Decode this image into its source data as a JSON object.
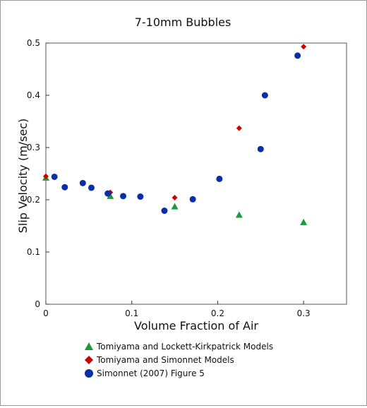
{
  "chart_data": {
    "type": "scatter",
    "title": "7-10mm Bubbles",
    "xlabel": "Volume Fraction of Air",
    "ylabel": "Slip Velocity (m/sec)",
    "xlim": [
      0,
      0.35
    ],
    "ylim": [
      0,
      0.5
    ],
    "xticks": [
      0,
      0.1,
      0.2,
      0.3
    ],
    "xtick_labels": [
      "0",
      "0.1",
      "0.2",
      "0.3"
    ],
    "yticks": [
      0,
      0.1,
      0.2,
      0.3,
      0.4,
      0.5
    ],
    "ytick_labels": [
      "0",
      "0.1",
      "0.2",
      "0.3",
      "0.4",
      "0.5"
    ],
    "grid": false,
    "legend_position": "bottom",
    "series": [
      {
        "name": "Tomiyama and Lockett-Kirkpatrick Models",
        "marker": "triangle",
        "color": "#1a9a3a",
        "points": [
          [
            0.0,
            0.242
          ],
          [
            0.075,
            0.207
          ],
          [
            0.15,
            0.187
          ],
          [
            0.225,
            0.171
          ],
          [
            0.3,
            0.157
          ]
        ]
      },
      {
        "name": "Tomiyama and Simonnet Models",
        "marker": "diamond",
        "color": "#cc0000",
        "points": [
          [
            0.0,
            0.245
          ],
          [
            0.075,
            0.214
          ],
          [
            0.15,
            0.204
          ],
          [
            0.225,
            0.337
          ],
          [
            0.3,
            0.493
          ]
        ]
      },
      {
        "name": "Simonnet (2007) Figure 5",
        "marker": "circle",
        "color": "#0a2ea8",
        "points": [
          [
            0.01,
            0.244
          ],
          [
            0.022,
            0.224
          ],
          [
            0.043,
            0.232
          ],
          [
            0.053,
            0.223
          ],
          [
            0.072,
            0.212
          ],
          [
            0.09,
            0.207
          ],
          [
            0.11,
            0.206
          ],
          [
            0.138,
            0.179
          ],
          [
            0.171,
            0.201
          ],
          [
            0.202,
            0.24
          ],
          [
            0.25,
            0.297
          ],
          [
            0.255,
            0.4
          ],
          [
            0.293,
            0.476
          ]
        ]
      }
    ]
  }
}
